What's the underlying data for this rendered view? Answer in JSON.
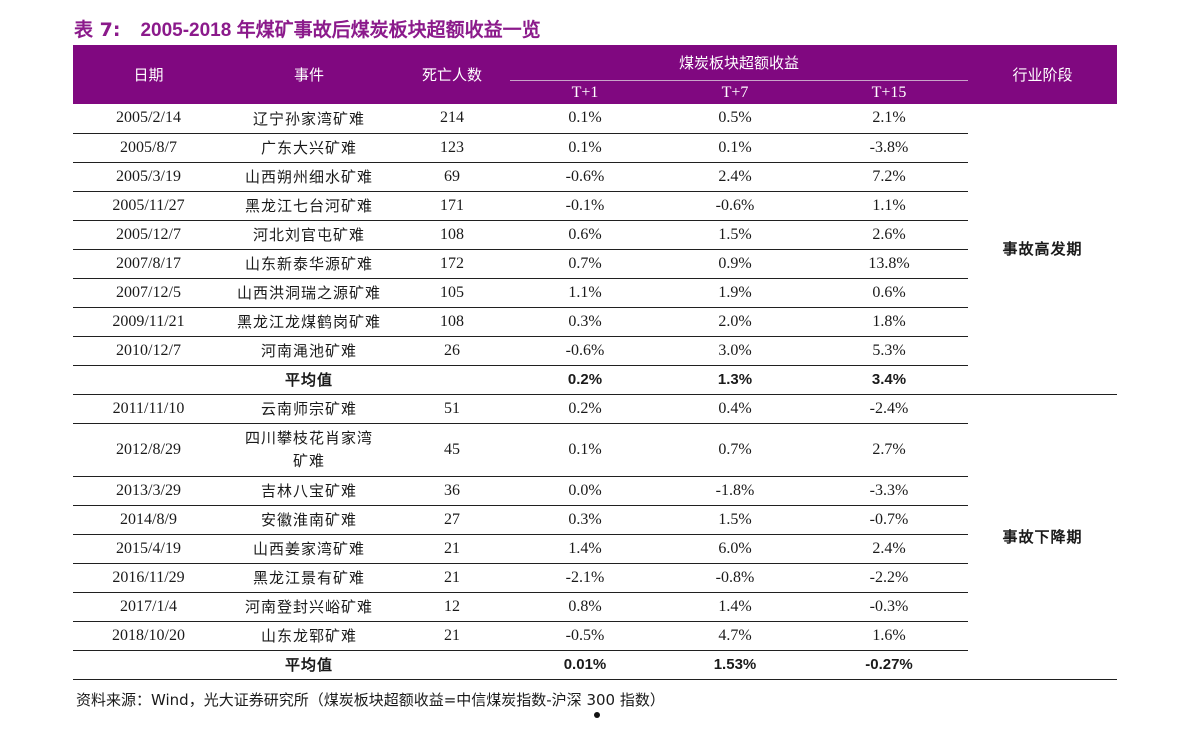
{
  "title": {
    "label": "表 7:",
    "text": "2005-2018 年煤矿事故后煤炭板块超额收益一览"
  },
  "headers": {
    "date": "日期",
    "event": "事件",
    "deaths": "死亡人数",
    "excess_return": "煤炭板块超额收益",
    "t1": "T+1",
    "t7": "T+7",
    "t15": "T+15",
    "stage": "行业阶段"
  },
  "groups": [
    {
      "stage": "事故高发期",
      "rows": [
        {
          "date": "2005/2/14",
          "event": "辽宁孙家湾矿难",
          "deaths": "214",
          "t1": "0.1%",
          "t7": "0.5%",
          "t15": "2.1%"
        },
        {
          "date": "2005/8/7",
          "event": "广东大兴矿难",
          "deaths": "123",
          "t1": "0.1%",
          "t7": "0.1%",
          "t15": "-3.8%"
        },
        {
          "date": "2005/3/19",
          "event": "山西朔州细水矿难",
          "deaths": "69",
          "t1": "-0.6%",
          "t7": "2.4%",
          "t15": "7.2%"
        },
        {
          "date": "2005/11/27",
          "event": "黑龙江七台河矿难",
          "deaths": "171",
          "t1": "-0.1%",
          "t7": "-0.6%",
          "t15": "1.1%"
        },
        {
          "date": "2005/12/7",
          "event": "河北刘官屯矿难",
          "deaths": "108",
          "t1": "0.6%",
          "t7": "1.5%",
          "t15": "2.6%"
        },
        {
          "date": "2007/8/17",
          "event": "山东新泰华源矿难",
          "deaths": "172",
          "t1": "0.7%",
          "t7": "0.9%",
          "t15": "13.8%"
        },
        {
          "date": "2007/12/5",
          "event": "山西洪洞瑞之源矿难",
          "deaths": "105",
          "t1": "1.1%",
          "t7": "1.9%",
          "t15": "0.6%"
        },
        {
          "date": "2009/11/21",
          "event": "黑龙江龙煤鹤岗矿难",
          "deaths": "108",
          "t1": "0.3%",
          "t7": "2.0%",
          "t15": "1.8%"
        },
        {
          "date": "2010/12/7",
          "event": "河南渑池矿难",
          "deaths": "26",
          "t1": "-0.6%",
          "t7": "3.0%",
          "t15": "5.3%"
        }
      ],
      "average": {
        "label": "平均值",
        "t1": "0.2%",
        "t7": "1.3%",
        "t15": "3.4%"
      }
    },
    {
      "stage": "事故下降期",
      "rows": [
        {
          "date": "2011/11/10",
          "event": "云南师宗矿难",
          "deaths": "51",
          "t1": "0.2%",
          "t7": "0.4%",
          "t15": "-2.4%"
        },
        {
          "date": "2012/8/29",
          "event": "四川攀枝花肖家湾矿难",
          "deaths": "45",
          "t1": "0.1%",
          "t7": "0.7%",
          "t15": "2.7%"
        },
        {
          "date": "2013/3/29",
          "event": "吉林八宝矿难",
          "deaths": "36",
          "t1": "0.0%",
          "t7": "-1.8%",
          "t15": "-3.3%"
        },
        {
          "date": "2014/8/9",
          "event": "安徽淮南矿难",
          "deaths": "27",
          "t1": "0.3%",
          "t7": "1.5%",
          "t15": "-0.7%"
        },
        {
          "date": "2015/4/19",
          "event": "山西姜家湾矿难",
          "deaths": "21",
          "t1": "1.4%",
          "t7": "6.0%",
          "t15": "2.4%"
        },
        {
          "date": "2016/11/29",
          "event": "黑龙江景有矿难",
          "deaths": "21",
          "t1": "-2.1%",
          "t7": "-0.8%",
          "t15": "-2.2%"
        },
        {
          "date": "2017/1/4",
          "event": "河南登封兴峪矿难",
          "deaths": "12",
          "t1": "0.8%",
          "t7": "1.4%",
          "t15": "-0.3%"
        },
        {
          "date": "2018/10/20",
          "event": "山东龙郓矿难",
          "deaths": "21",
          "t1": "-0.5%",
          "t7": "4.7%",
          "t15": "1.6%"
        }
      ],
      "average": {
        "label": "平均值",
        "t1": "0.01%",
        "t7": "1.53%",
        "t15": "-0.27%"
      }
    }
  ],
  "source": "资料来源：Wind，光大证券研究所（煤炭板块超额收益=中信煤炭指数-沪深 300 指数）",
  "colors": {
    "header_bg": "#800880",
    "title": "#8b1a8b"
  }
}
